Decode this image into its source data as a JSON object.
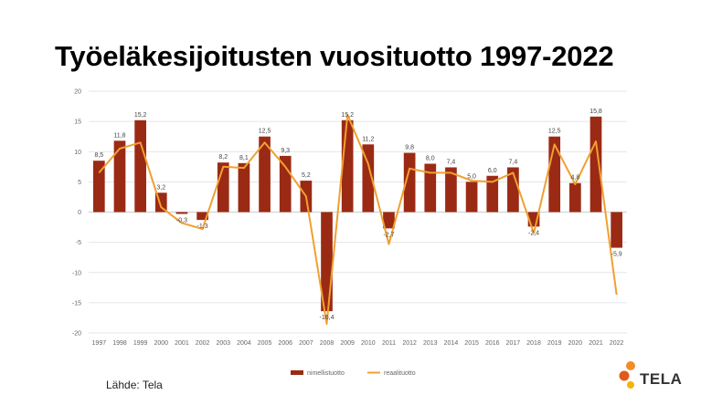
{
  "title": "Työeläkesijoitusten vuosituotto 1997-2022",
  "source": "Lähde: Tela",
  "logo": {
    "text": "TELA",
    "colors": [
      "#f28c28",
      "#e05a1b",
      "#f5b400"
    ]
  },
  "colors": {
    "bar": "#9b2a14",
    "line": "#f0a030",
    "grid": "#dddddd"
  },
  "chart_data": {
    "type": "bar",
    "categories": [
      "1997",
      "1998",
      "1999",
      "2000",
      "2001",
      "2002",
      "2003",
      "2004",
      "2005",
      "2006",
      "2007",
      "2008",
      "2009",
      "2010",
      "2011",
      "2012",
      "2013",
      "2014",
      "2015",
      "2016",
      "2017",
      "2018",
      "2019",
      "2020",
      "2021",
      "2022"
    ],
    "series": [
      {
        "name": "nimellistuotto",
        "type": "bar",
        "values": [
          8.5,
          11.8,
          15.2,
          3.2,
          -0.3,
          -1.3,
          8.2,
          8.1,
          12.5,
          9.3,
          5.2,
          -16.4,
          15.2,
          11.2,
          -2.7,
          9.8,
          8.0,
          7.4,
          5.0,
          6.0,
          7.4,
          -2.4,
          12.5,
          4.8,
          15.8,
          -5.9
        ],
        "labels": [
          "8,5",
          "11,8",
          "15,2",
          "3,2",
          "-0,3",
          "-1,3",
          "8,2",
          "8,1",
          "12,5",
          "9,3",
          "5,2",
          "-16,4",
          "15,2",
          "11,2",
          "-2,7",
          "9,8",
          "8,0",
          "7,4",
          "5,0",
          "6,0",
          "7,4",
          "-2,4",
          "12,5",
          "4,8",
          "15,8",
          "-5,9"
        ]
      },
      {
        "name": "reaalituotto",
        "type": "line",
        "values": [
          6.5,
          10.5,
          11.5,
          0.8,
          -1.8,
          -2.8,
          7.5,
          7.3,
          11.5,
          7.5,
          2.6,
          -18.5,
          16.1,
          8.0,
          -5.3,
          7.2,
          6.5,
          6.5,
          5.2,
          5.0,
          6.5,
          -3.5,
          11.2,
          4.6,
          11.7,
          -13.7
        ]
      }
    ],
    "yticks": [
      "20",
      "15",
      "10",
      "5",
      "0",
      "-5",
      "-10",
      "-15",
      "-20"
    ],
    "ylim": [
      -20,
      20
    ],
    "grid": true,
    "legend": "bottom"
  }
}
